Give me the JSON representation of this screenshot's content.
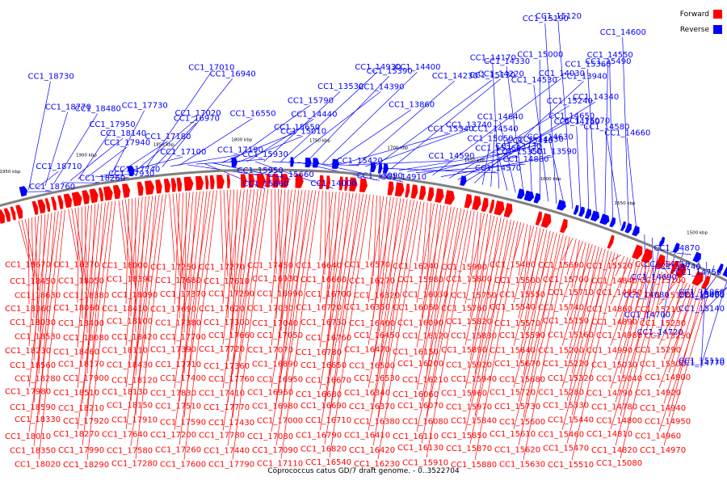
{
  "caption": "Coprococcus catus GD/7 draft genome. - 0..3522704",
  "legend": [
    {
      "label": "Forward",
      "color": "#ff0000"
    },
    {
      "label": "Reverse",
      "color": "#0000ff"
    }
  ],
  "colors": {
    "forward": "#ff0000",
    "reverse": "#0000ff",
    "backbone": "#808080"
  },
  "ticks": [
    "1950 kbp",
    "1900 kbp",
    "1850 kbp",
    "1800 kbp",
    "1750 kbp",
    "1700 kbp",
    "1650 kbp",
    "1600 kbp",
    "1550 kbp",
    "1500 kbp",
    "1450 kbp"
  ],
  "reverse_labels": [
    "CC1_18760",
    "CC1_18730",
    "CC1_18710",
    "CC1_18770",
    "CC1_18480",
    "CC1_18260",
    "CC1_18140",
    "CC1_17950",
    "CC1_17940",
    "CC1_17930",
    "CC1_17740",
    "CC1_17730",
    "CC1_17180",
    "CC1_17100",
    "CC1_17020",
    "CC1_17010",
    "CC1_16970",
    "CC1_16940",
    "CC1_17190",
    "CC1_16550",
    "CC1_15950",
    "CC1_15930",
    "CC1_15860",
    "CC1_15660",
    "CC1_15650",
    "CC1_15790",
    "CC1_15010",
    "CC1_14440",
    "CC1_14000",
    "CC1_13530",
    "CC1_15420",
    "CC1_14930",
    "CC1_14390",
    "CC1_13990",
    "CC1_15390",
    "CC1_14910",
    "CC1_14400",
    "CC1_13860",
    "CC1_15340",
    "CC1_14590",
    "CC1_14230",
    "CC1_13740",
    "CC1_15130",
    "CC1_14570",
    "CC1_14220",
    "CC1_13730",
    "CC1_15350",
    "CC1_14880",
    "CC1_14430",
    "CC1_14030",
    "CC1_13590",
    "CC1_15240",
    "CC1_14650",
    "CC1_14340",
    "CC1_13940",
    "CC1_15050",
    "CC1_14540",
    "CC1_14170",
    "CC1_15260",
    "CC1_14640",
    "CC1_14330",
    "CC1_15410",
    "CC1_15000",
    "CC1_14530",
    "CC1_15190",
    "CC1_14630",
    "CC1_15120",
    "CC1_14760",
    "CC1_15070",
    "CC1_15360",
    "CC1_15490",
    "CC1_14550",
    "CC1_14580",
    "CC1_14600",
    "CC1_14660",
    "CC1_14680",
    "CC1_14690",
    "CC1_14700",
    "CC1_14710",
    "CC1_14720",
    "CC1_14740",
    "CC1_14870",
    "CC1_14750",
    "CC1_14770",
    "CC1_15400",
    "CC1_15060",
    "CC1_15110",
    "CC1_15140",
    "CC1_15020"
  ],
  "forward_labels": [
    "CC1_18670",
    "CC1_18450",
    "CC1_18630",
    "CC1_18360",
    "CC1_18030",
    "CC1_18530",
    "CC1_18230",
    "CC1_18560",
    "CC1_18280",
    "CC1_17980",
    "CC1_18590",
    "CC1_18330",
    "CC1_18010",
    "CC1_18350",
    "CC1_18020",
    "CC1_18370",
    "CC1_18050",
    "CC1_18380",
    "CC1_18060",
    "CC1_18400",
    "CC1_18080",
    "CC1_18460",
    "CC1_18170",
    "CC1_17900",
    "CC1_18510",
    "CC1_18210",
    "CC1_17920",
    "CC1_18270",
    "CC1_17990",
    "CC1_18290",
    "CC1_18000",
    "CC1_18390",
    "CC1_18090",
    "CC1_18410",
    "CC1_18100",
    "CC1_18420",
    "CC1_18110",
    "CC1_18430",
    "CC1_18120",
    "CC1_18130",
    "CC1_18150",
    "CC1_17910",
    "CC1_17640",
    "CC1_17580",
    "CC1_17280",
    "CC1_17250",
    "CC1_17680",
    "CC1_17370",
    "CC1_17690",
    "CC1_17380",
    "CC1_17700",
    "CC1_17390",
    "CC1_17710",
    "CC1_17400",
    "CC1_17830",
    "CC1_17510",
    "CC1_17590",
    "CC1_17200",
    "CC1_17260",
    "CC1_17600",
    "CC1_17270",
    "CC1_17610",
    "CC1_17290",
    "CC1_17620",
    "CC1_17300",
    "CC1_17660",
    "CC1_17720",
    "CC1_17360",
    "CC1_17760",
    "CC1_17410",
    "CC1_17770",
    "CC1_17430",
    "CC1_17780",
    "CC1_17440",
    "CC1_17790",
    "CC1_17450",
    "CC1_16930",
    "CC1_16990",
    "CC1_17030",
    "CC1_17040",
    "CC1_17050",
    "CC1_17070",
    "CC1_16890",
    "CC1_16950",
    "CC1_16960",
    "CC1_16980",
    "CC1_17000",
    "CC1_17080",
    "CC1_17090",
    "CC1_17110",
    "CC1_16640",
    "CC1_16660",
    "CC1_16700",
    "CC1_16720",
    "CC1_16730",
    "CC1_16760",
    "CC1_16780",
    "CC1_16650",
    "CC1_16670",
    "CC1_16680",
    "CC1_16690",
    "CC1_16710",
    "CC1_16790",
    "CC1_16820",
    "CC1_16540",
    "CC1_16570",
    "CC1_16270",
    "CC1_16320",
    "CC1_16350",
    "CC1_16400",
    "CC1_16450",
    "CC1_16470",
    "CC1_16500",
    "CC1_16530",
    "CC1_16340",
    "CC1_16370",
    "CC1_16380",
    "CC1_16410",
    "CC1_16420",
    "CC1_16230",
    "CC1_16240",
    "CC1_15980",
    "CC1_16030",
    "CC1_16050",
    "CC1_16090",
    "CC1_16120",
    "CC1_16150",
    "CC1_16200",
    "CC1_16210",
    "CC1_16060",
    "CC1_16070",
    "CC1_16080",
    "CC1_16110",
    "CC1_16130",
    "CC1_15910",
    "CC1_15990",
    "CC1_15800",
    "CC1_15750",
    "CC1_15760",
    "CC1_15820",
    "CC1_15830",
    "CC1_15890",
    "CC1_15920",
    "CC1_15940",
    "CC1_15960",
    "CC1_15970",
    "CC1_15840",
    "CC1_15850",
    "CC1_15870",
    "CC1_15880",
    "CC1_15480",
    "CC1_15500",
    "CC1_15550",
    "CC1_15540",
    "CC1_15570",
    "CC1_15590",
    "CC1_15640",
    "CC1_15670",
    "CC1_15680",
    "CC1_15720",
    "CC1_15730",
    "CC1_15600",
    "CC1_15610",
    "CC1_15620",
    "CC1_15630",
    "CC1_15690",
    "CC1_15700",
    "CC1_15710",
    "CC1_15740",
    "CC1_15150",
    "CC1_15160",
    "CC1_15200",
    "CC1_15220",
    "CC1_15320",
    "CC1_15280",
    "CC1_15330",
    "CC1_15440",
    "CC1_15460",
    "CC1_15470",
    "CC1_15510",
    "CC1_15520",
    "CC1_14840",
    "CC1_14850",
    "CC1_14860",
    "CC1_14890",
    "CC1_14980",
    "CC1_14990",
    "CC1_15030",
    "CC1_15040",
    "CC1_14790",
    "CC1_14780",
    "CC1_14800",
    "CC1_14810",
    "CC1_14820",
    "CC1_15080",
    "CC1_15090",
    "CC1_15100",
    "CC1_15170",
    "CC1_15210",
    "CC1_15230",
    "CC1_15250",
    "CC1_15290",
    "CC1_15300",
    "CC1_14900",
    "CC1_14920",
    "CC1_14940",
    "CC1_14950",
    "CC1_14960",
    "CC1_14970"
  ]
}
